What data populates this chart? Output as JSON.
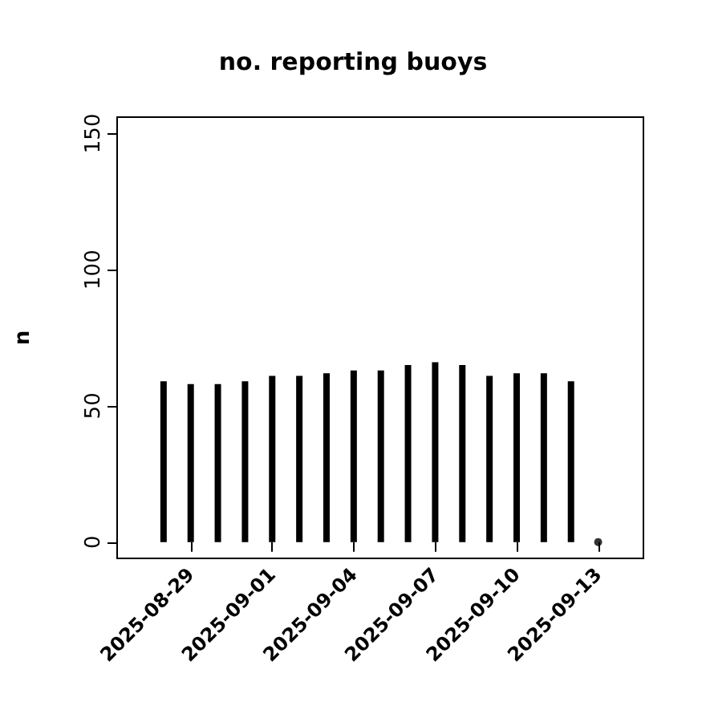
{
  "chart_data": {
    "type": "bar",
    "title": "no. reporting buoys",
    "ylabel": "n",
    "series": [
      {
        "color": "#000000",
        "x": [
          "2025-08-28",
          "2025-08-29",
          "2025-08-30",
          "2025-08-31",
          "2025-09-01",
          "2025-09-02",
          "2025-09-03",
          "2025-09-04",
          "2025-09-05",
          "2025-09-06",
          "2025-09-07",
          "2025-09-08",
          "2025-09-09",
          "2025-09-10",
          "2025-09-11",
          "2025-09-12"
        ],
        "values": [
          59,
          58,
          58,
          59,
          61,
          61,
          62,
          63,
          63,
          65,
          66,
          65,
          61,
          62,
          62,
          59
        ]
      },
      {
        "type": "scatter",
        "color": "#000000",
        "x": [
          "2025-09-13"
        ],
        "values": [
          0
        ]
      }
    ],
    "xlim": [
      "2025-08-26T07:00",
      "2025-09-14T16:00"
    ],
    "xticks": [
      "2025-08-29",
      "2025-09-01",
      "2025-09-04",
      "2025-09-07",
      "2025-09-10",
      "2025-09-13"
    ],
    "ylim": [
      -6,
      156
    ],
    "yticks": [
      0,
      50,
      100,
      150
    ],
    "grid": false
  }
}
